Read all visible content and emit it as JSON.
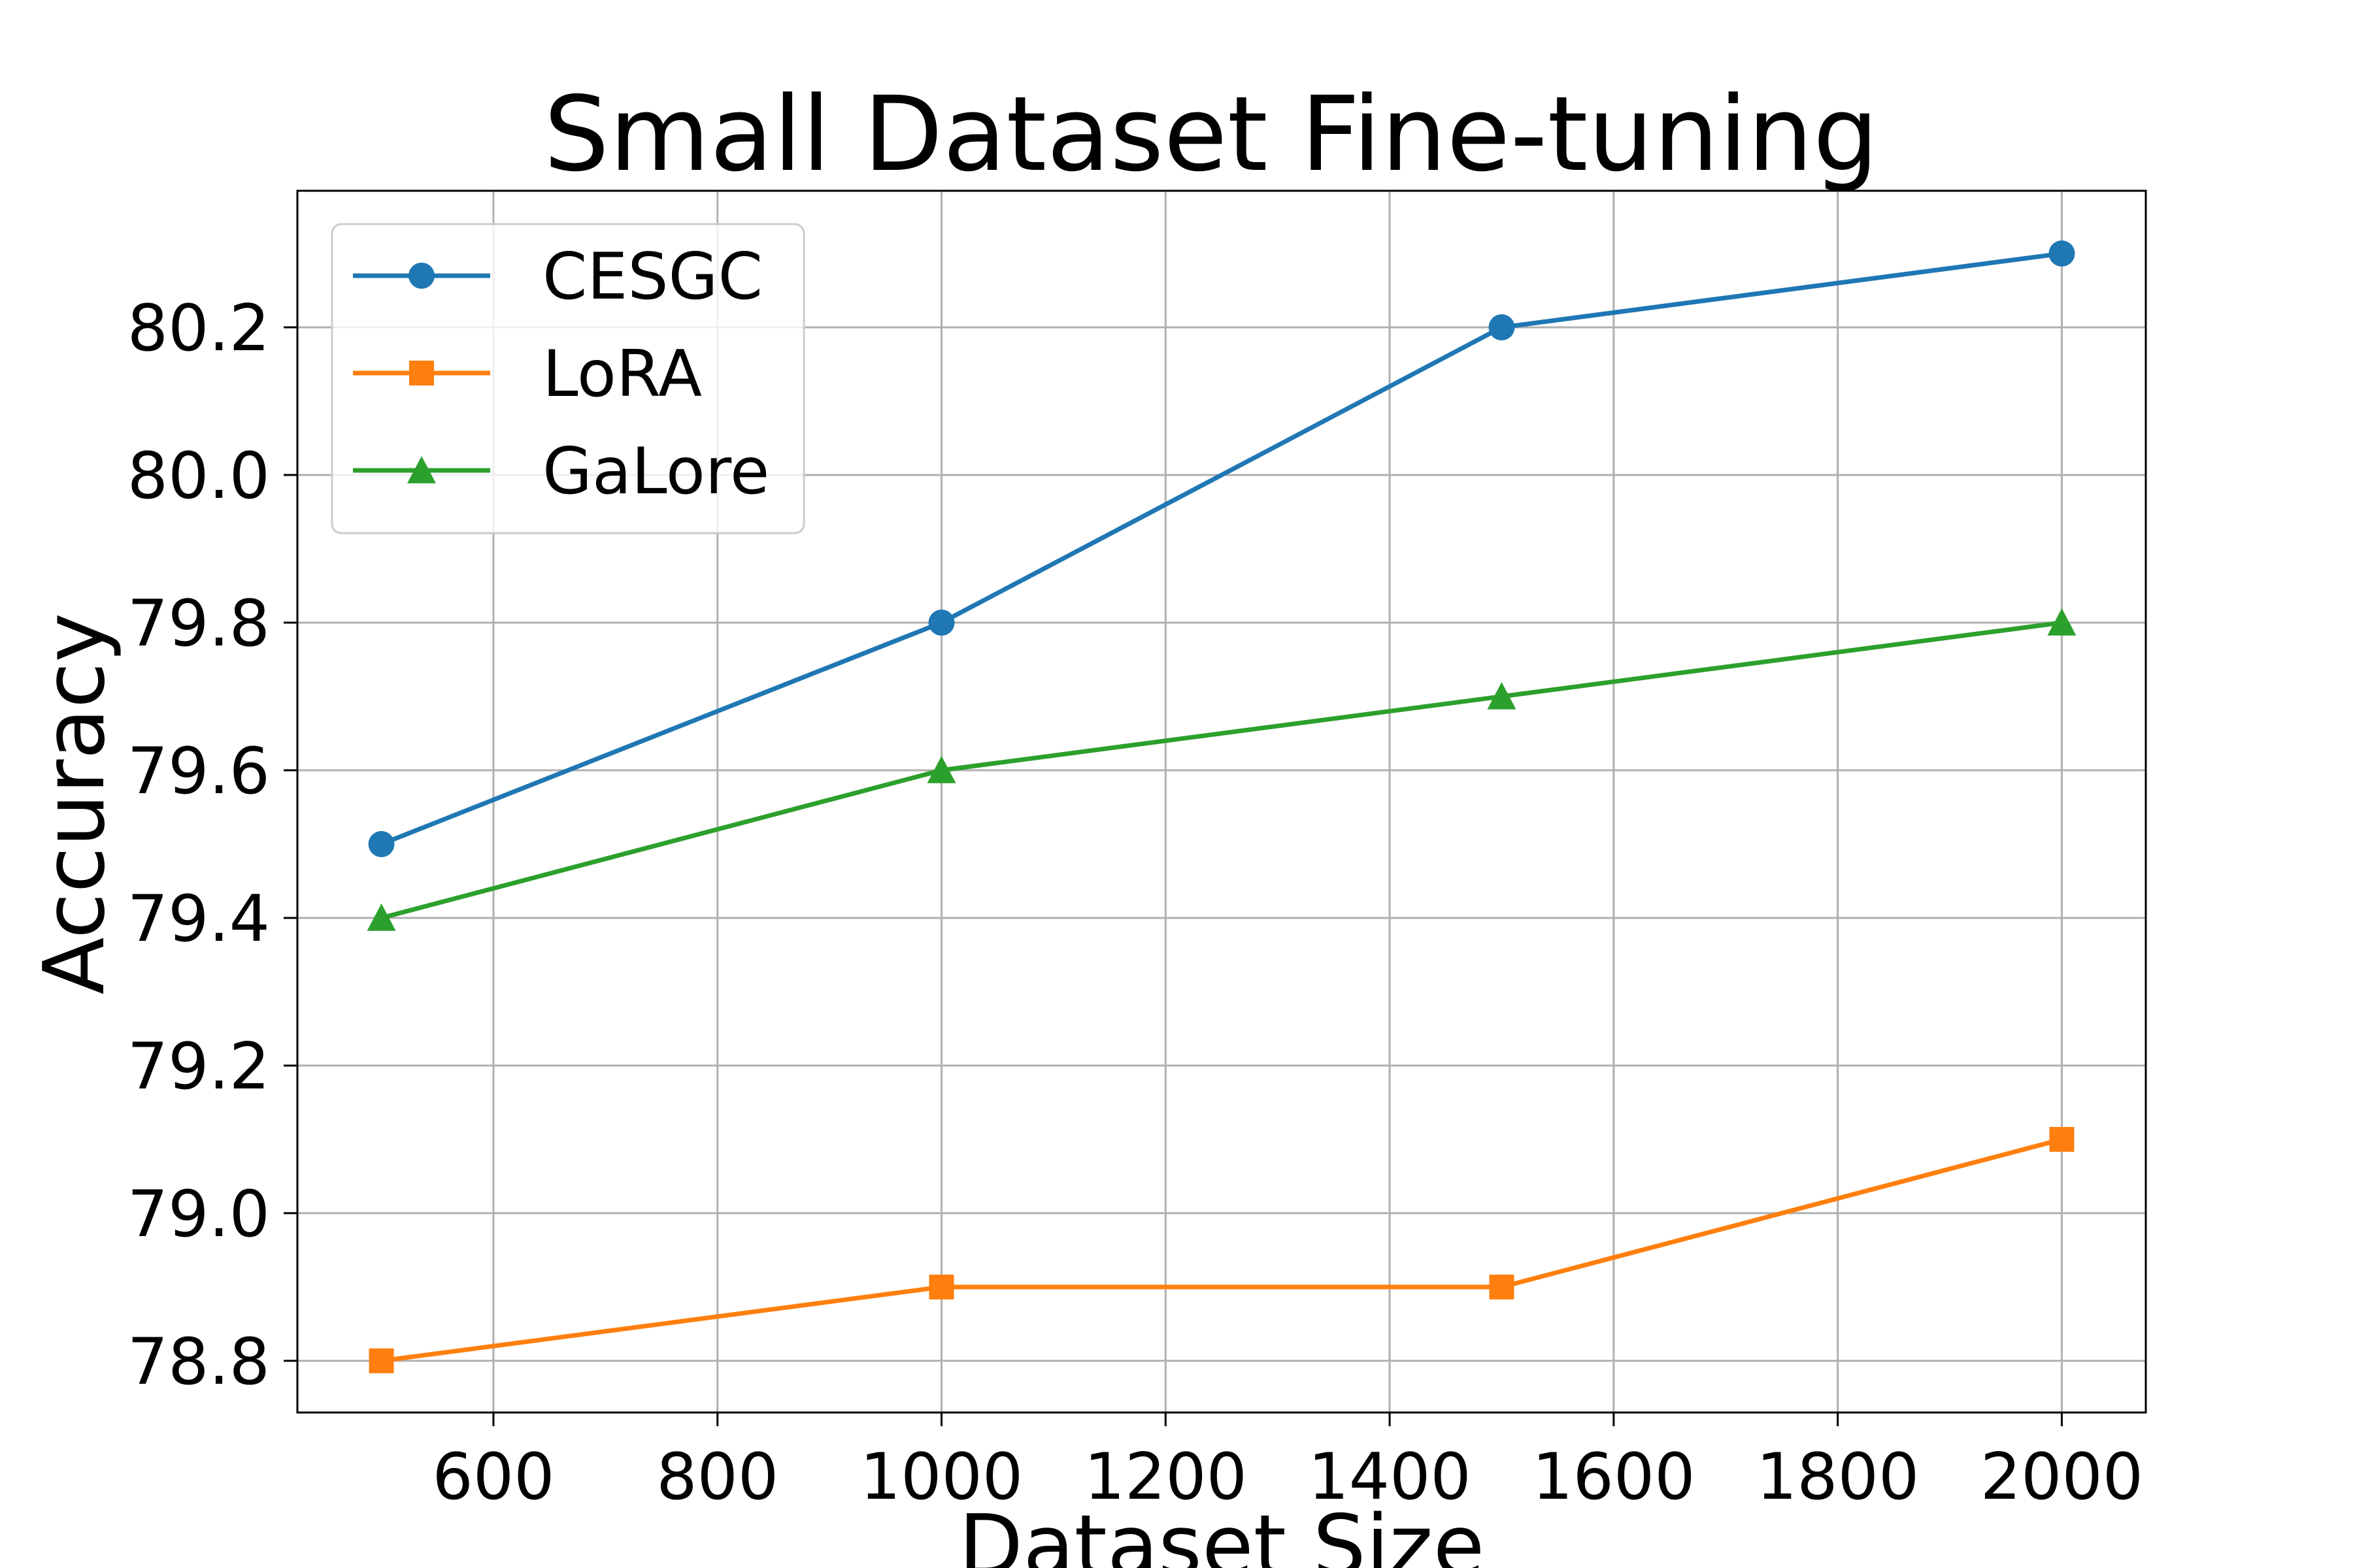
{
  "chart_data": {
    "type": "line",
    "title": "Small Dataset Fine-tuning",
    "xlabel": "Dataset Size",
    "ylabel": "Accuracy",
    "x": [
      500,
      1000,
      1500,
      2000
    ],
    "xlim": [
      425,
      2075
    ],
    "ylim": [
      78.73,
      80.385
    ],
    "xticks": [
      600,
      800,
      1000,
      1200,
      1400,
      1600,
      1800,
      2000
    ],
    "yticks": [
      78.8,
      79.0,
      79.2,
      79.4,
      79.6,
      79.8,
      80.0,
      80.2
    ],
    "ytick_labels": [
      "78.8",
      "79.0",
      "79.2",
      "79.4",
      "79.6",
      "79.8",
      "80.0",
      "80.2"
    ],
    "grid": true,
    "legend_position": "upper-left",
    "series": [
      {
        "name": "CESGC",
        "values": [
          79.5,
          79.8,
          80.2,
          80.3
        ],
        "color": "#1f77b4",
        "marker": "circle"
      },
      {
        "name": "LoRA",
        "values": [
          78.8,
          78.9,
          78.9,
          79.1
        ],
        "color": "#ff7f0e",
        "marker": "square"
      },
      {
        "name": "GaLore",
        "values": [
          79.4,
          79.6,
          79.7,
          79.8
        ],
        "color": "#2ca02c",
        "marker": "triangle"
      }
    ]
  }
}
